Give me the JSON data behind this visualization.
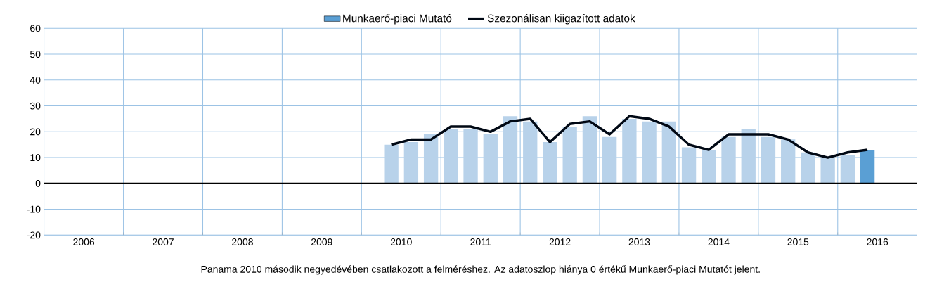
{
  "chart_data": {
    "type": "bar",
    "x": [
      2009.875,
      2010.125,
      2010.375,
      2010.625,
      2010.875,
      2011.125,
      2011.375,
      2011.625,
      2011.875,
      2012.125,
      2012.375,
      2012.625,
      2012.875,
      2013.125,
      2013.375,
      2013.625,
      2013.875,
      2014.125,
      2014.375,
      2014.625,
      2014.875,
      2015.125,
      2015.375,
      2015.625,
      2015.875
    ],
    "series": [
      {
        "name": "Munkaerő-piaci Mutató",
        "color": "#5a9fd4",
        "colors": [
          "#b8d2ea",
          "#b8d2ea",
          "#b8d2ea",
          "#b8d2ea",
          "#b8d2ea",
          "#b8d2ea",
          "#b8d2ea",
          "#b8d2ea",
          "#b8d2ea",
          "#b8d2ea",
          "#b8d2ea",
          "#b8d2ea",
          "#b8d2ea",
          "#b8d2ea",
          "#b8d2ea",
          "#b8d2ea",
          "#b8d2ea",
          "#b8d2ea",
          "#b8d2ea",
          "#b8d2ea",
          "#b8d2ea",
          "#b8d2ea",
          "#b8d2ea",
          "#b8d2ea",
          "#5a9fd4"
        ],
        "values": [
          15,
          16,
          19,
          21,
          21,
          19,
          26,
          24,
          16,
          22,
          26,
          18,
          25,
          24,
          24,
          14,
          13,
          18,
          21,
          18,
          17,
          12,
          10,
          11,
          13
        ]
      },
      {
        "name": "Szezonálisan kiigazított adatok",
        "type": "line",
        "color": "#000814",
        "values": [
          15,
          17,
          17,
          22,
          22,
          20,
          24,
          25,
          16,
          23,
          24,
          19,
          26,
          25,
          22,
          15,
          13,
          19,
          19,
          19,
          17,
          12,
          10,
          12,
          13
        ]
      }
    ],
    "xlim": [
      2005.5,
      2016.5
    ],
    "xticks": [
      2006,
      2007,
      2008,
      2009,
      2010,
      2011,
      2012,
      2013,
      2014,
      2015,
      2016
    ],
    "ylim": [
      -20,
      60
    ],
    "yticks": [
      -20,
      -10,
      0,
      10,
      20,
      30,
      40,
      50,
      60
    ],
    "ref_lines": [
      {
        "axis": "y",
        "value": 0,
        "color": "#000000"
      }
    ],
    "grid": true,
    "legend": "top",
    "annotations": [
      "Panama 2010 második negyedévében csatlakozott a felméréshez. Az adatoszlop hiánya 0 értékű Munkaerő-piaci Mutatót jelent."
    ]
  }
}
